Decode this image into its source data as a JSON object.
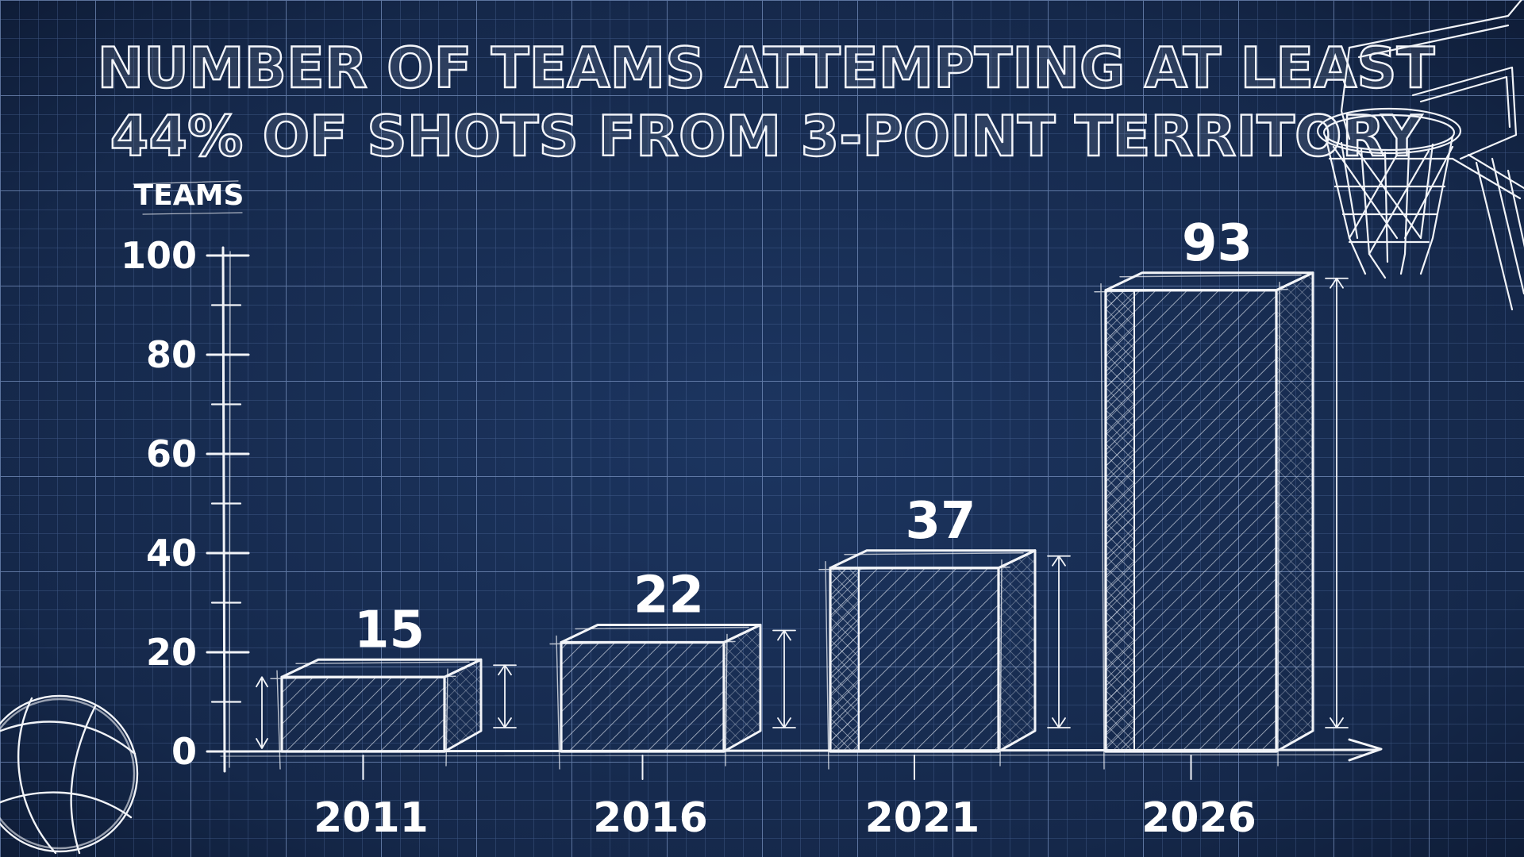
{
  "title": {
    "line1": "NUMBER OF TEAMS ATTEMPTING AT LEAST",
    "line2": "44% OF SHOTS FROM 3-POINT TERRITORY"
  },
  "colors": {
    "background": "#15284a",
    "grid": "#5f7bb0",
    "ink": "#f2f4f8"
  },
  "decorations": {
    "top_right": "basketball-hoop-icon",
    "bottom_left": "basketball-icon"
  },
  "chart_data": {
    "type": "bar",
    "categories": [
      "2011",
      "2016",
      "2021",
      "2026"
    ],
    "values": [
      15,
      22,
      37,
      93
    ],
    "value_labels": [
      "15",
      "22",
      "37",
      "93"
    ],
    "ylabel": "TEAMS",
    "xlabel": "",
    "ylim": [
      0,
      100
    ],
    "yticks": [
      0,
      20,
      40,
      60,
      80,
      100
    ],
    "ytick_labels": [
      "0",
      "20",
      "40",
      "60",
      "80",
      "100"
    ],
    "grid": true,
    "style": "blueprint sketch, 3D boxes"
  }
}
